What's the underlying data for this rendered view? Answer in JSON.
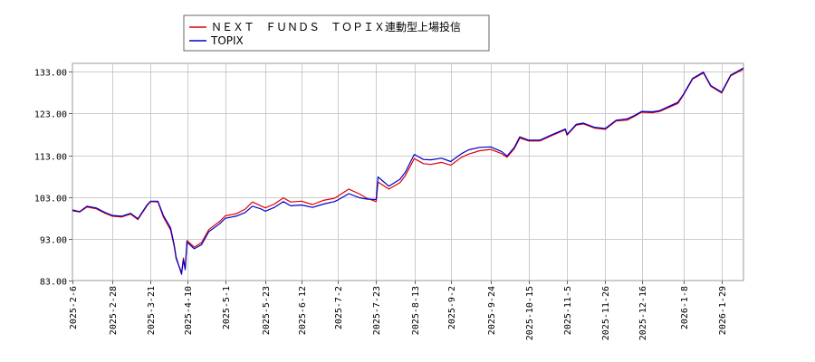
{
  "chart_data": {
    "type": "line",
    "title": "",
    "xlabel": "",
    "ylabel": "",
    "ylim": [
      83.0,
      135.0
    ],
    "y_ticks": [
      83.0,
      93.0,
      103.0,
      113.0,
      123.0,
      133.0
    ],
    "y_tick_labels": [
      "83.00",
      "93.00",
      "103.00",
      "113.00",
      "123.00",
      "133.00"
    ],
    "x_tick_labels": [
      "2025-2-6",
      "2025-2-28",
      "2025-3-21",
      "2025-4-10",
      "2025-5-1",
      "2025-5-23",
      "2025-6-12",
      "2025-7-2",
      "2025-7-23",
      "2025-8-13",
      "2025-9-2",
      "2025-9-24",
      "2025-10-15",
      "2025-11-5",
      "2025-11-26",
      "2025-12-16",
      "2026-1-8",
      "2026-1-29"
    ],
    "x_range": [
      "2025-2-6",
      "2026-2-10"
    ],
    "grid": true,
    "legend_position": "top-left",
    "series": [
      {
        "name": "ＮＥＸＴ　ＦＵＮＤＳ　ＴＯＰＩＸ連動型上場投信",
        "color": "#e00000",
        "x": [
          "2025-2-6",
          "2025-2-10",
          "2025-2-14",
          "2025-2-19",
          "2025-2-24",
          "2025-2-28",
          "2025-3-5",
          "2025-3-10",
          "2025-3-14",
          "2025-3-19",
          "2025-3-21",
          "2025-3-25",
          "2025-3-28",
          "2025-4-1",
          "2025-4-3",
          "2025-4-4",
          "2025-4-7",
          "2025-4-8",
          "2025-4-9",
          "2025-4-10",
          "2025-4-14",
          "2025-4-18",
          "2025-4-22",
          "2025-4-28",
          "2025-5-1",
          "2025-5-7",
          "2025-5-12",
          "2025-5-16",
          "2025-5-21",
          "2025-5-23",
          "2025-5-28",
          "2025-6-2",
          "2025-6-6",
          "2025-6-12",
          "2025-6-18",
          "2025-6-24",
          "2025-6-30",
          "2025-7-2",
          "2025-7-8",
          "2025-7-14",
          "2025-7-18",
          "2025-7-23",
          "2025-7-24",
          "2025-7-30",
          "2025-8-5",
          "2025-8-8",
          "2025-8-13",
          "2025-8-18",
          "2025-8-22",
          "2025-8-28",
          "2025-9-2",
          "2025-9-8",
          "2025-9-12",
          "2025-9-18",
          "2025-9-24",
          "2025-9-30",
          "2025-10-3",
          "2025-10-7",
          "2025-10-10",
          "2025-10-15",
          "2025-10-21",
          "2025-10-27",
          "2025-11-4",
          "2025-11-5",
          "2025-11-10",
          "2025-11-14",
          "2025-11-20",
          "2025-11-26",
          "2025-12-2",
          "2025-12-8",
          "2025-12-12",
          "2025-12-16",
          "2025-12-22",
          "2025-12-26",
          "2026-1-5",
          "2026-1-8",
          "2026-1-13",
          "2026-1-19",
          "2026-1-23",
          "2026-1-29",
          "2026-2-3",
          "2026-2-6",
          "2026-2-10"
        ],
        "y": [
          99.7,
          99.4,
          100.6,
          100.2,
          99.1,
          98.4,
          98.2,
          98.9,
          97.6,
          100.9,
          101.9,
          101.8,
          98.2,
          95.1,
          91.0,
          88.2,
          84.9,
          88.4,
          86.0,
          92.6,
          91.0,
          92.1,
          95.2,
          97.2,
          98.5,
          99.0,
          100.1,
          101.8,
          100.8,
          100.4,
          101.3,
          102.8,
          101.8,
          102.0,
          101.2,
          102.2,
          102.7,
          103.2,
          104.9,
          103.7,
          102.7,
          101.9,
          106.6,
          104.9,
          106.4,
          108.1,
          112.2,
          111.0,
          110.8,
          111.3,
          110.6,
          112.5,
          113.3,
          114.1,
          114.4,
          113.4,
          112.5,
          114.6,
          117.1,
          116.4,
          116.4,
          117.6,
          119.1,
          117.8,
          120.2,
          120.5,
          119.5,
          119.2,
          121.2,
          121.4,
          122.3,
          123.3,
          123.2,
          123.5,
          125.4,
          127.4,
          131.2,
          132.7,
          129.5,
          127.9,
          132.0,
          132.7,
          133.6
        ]
      },
      {
        "name": "TOPIX",
        "color": "#0000cc",
        "x": [
          "2025-2-6",
          "2025-2-10",
          "2025-2-14",
          "2025-2-19",
          "2025-2-24",
          "2025-2-28",
          "2025-3-5",
          "2025-3-10",
          "2025-3-14",
          "2025-3-19",
          "2025-3-21",
          "2025-3-25",
          "2025-3-28",
          "2025-4-1",
          "2025-4-3",
          "2025-4-4",
          "2025-4-7",
          "2025-4-8",
          "2025-4-9",
          "2025-4-10",
          "2025-4-14",
          "2025-4-18",
          "2025-4-22",
          "2025-4-28",
          "2025-5-1",
          "2025-5-7",
          "2025-5-12",
          "2025-5-16",
          "2025-5-21",
          "2025-5-23",
          "2025-5-28",
          "2025-6-2",
          "2025-6-6",
          "2025-6-12",
          "2025-6-18",
          "2025-6-24",
          "2025-6-30",
          "2025-7-2",
          "2025-7-8",
          "2025-7-14",
          "2025-7-18",
          "2025-7-23",
          "2025-7-24",
          "2025-7-30",
          "2025-8-5",
          "2025-8-8",
          "2025-8-13",
          "2025-8-18",
          "2025-8-22",
          "2025-8-28",
          "2025-9-2",
          "2025-9-8",
          "2025-9-12",
          "2025-9-18",
          "2025-9-24",
          "2025-9-30",
          "2025-10-3",
          "2025-10-7",
          "2025-10-10",
          "2025-10-15",
          "2025-10-21",
          "2025-10-27",
          "2025-11-4",
          "2025-11-5",
          "2025-11-10",
          "2025-11-14",
          "2025-11-20",
          "2025-11-26",
          "2025-12-2",
          "2025-12-8",
          "2025-12-12",
          "2025-12-16",
          "2025-12-22",
          "2025-12-26",
          "2026-1-5",
          "2026-1-8",
          "2026-1-13",
          "2026-1-19",
          "2026-1-23",
          "2026-1-29",
          "2026-2-3",
          "2026-2-6",
          "2026-2-10"
        ],
        "y": [
          99.9,
          99.5,
          100.8,
          100.4,
          99.3,
          98.6,
          98.4,
          99.1,
          97.8,
          101.1,
          102.0,
          102.0,
          98.6,
          95.6,
          91.4,
          88.6,
          84.5,
          88.0,
          85.6,
          92.2,
          90.6,
          91.6,
          94.7,
          96.6,
          97.9,
          98.4,
          99.3,
          100.8,
          100.1,
          99.6,
          100.5,
          101.9,
          100.9,
          101.1,
          100.5,
          101.3,
          101.9,
          102.3,
          103.8,
          102.8,
          102.5,
          102.4,
          107.8,
          105.6,
          107.2,
          108.9,
          113.2,
          112.0,
          111.9,
          112.3,
          111.5,
          113.4,
          114.3,
          114.9,
          115.0,
          113.9,
          112.8,
          114.9,
          117.4,
          116.6,
          116.6,
          117.8,
          119.3,
          118.0,
          120.4,
          120.7,
          119.7,
          119.4,
          121.4,
          121.7,
          122.5,
          123.5,
          123.4,
          123.7,
          125.7,
          127.6,
          131.4,
          132.9,
          129.7,
          128.1,
          132.2,
          132.9,
          133.9
        ]
      }
    ]
  }
}
